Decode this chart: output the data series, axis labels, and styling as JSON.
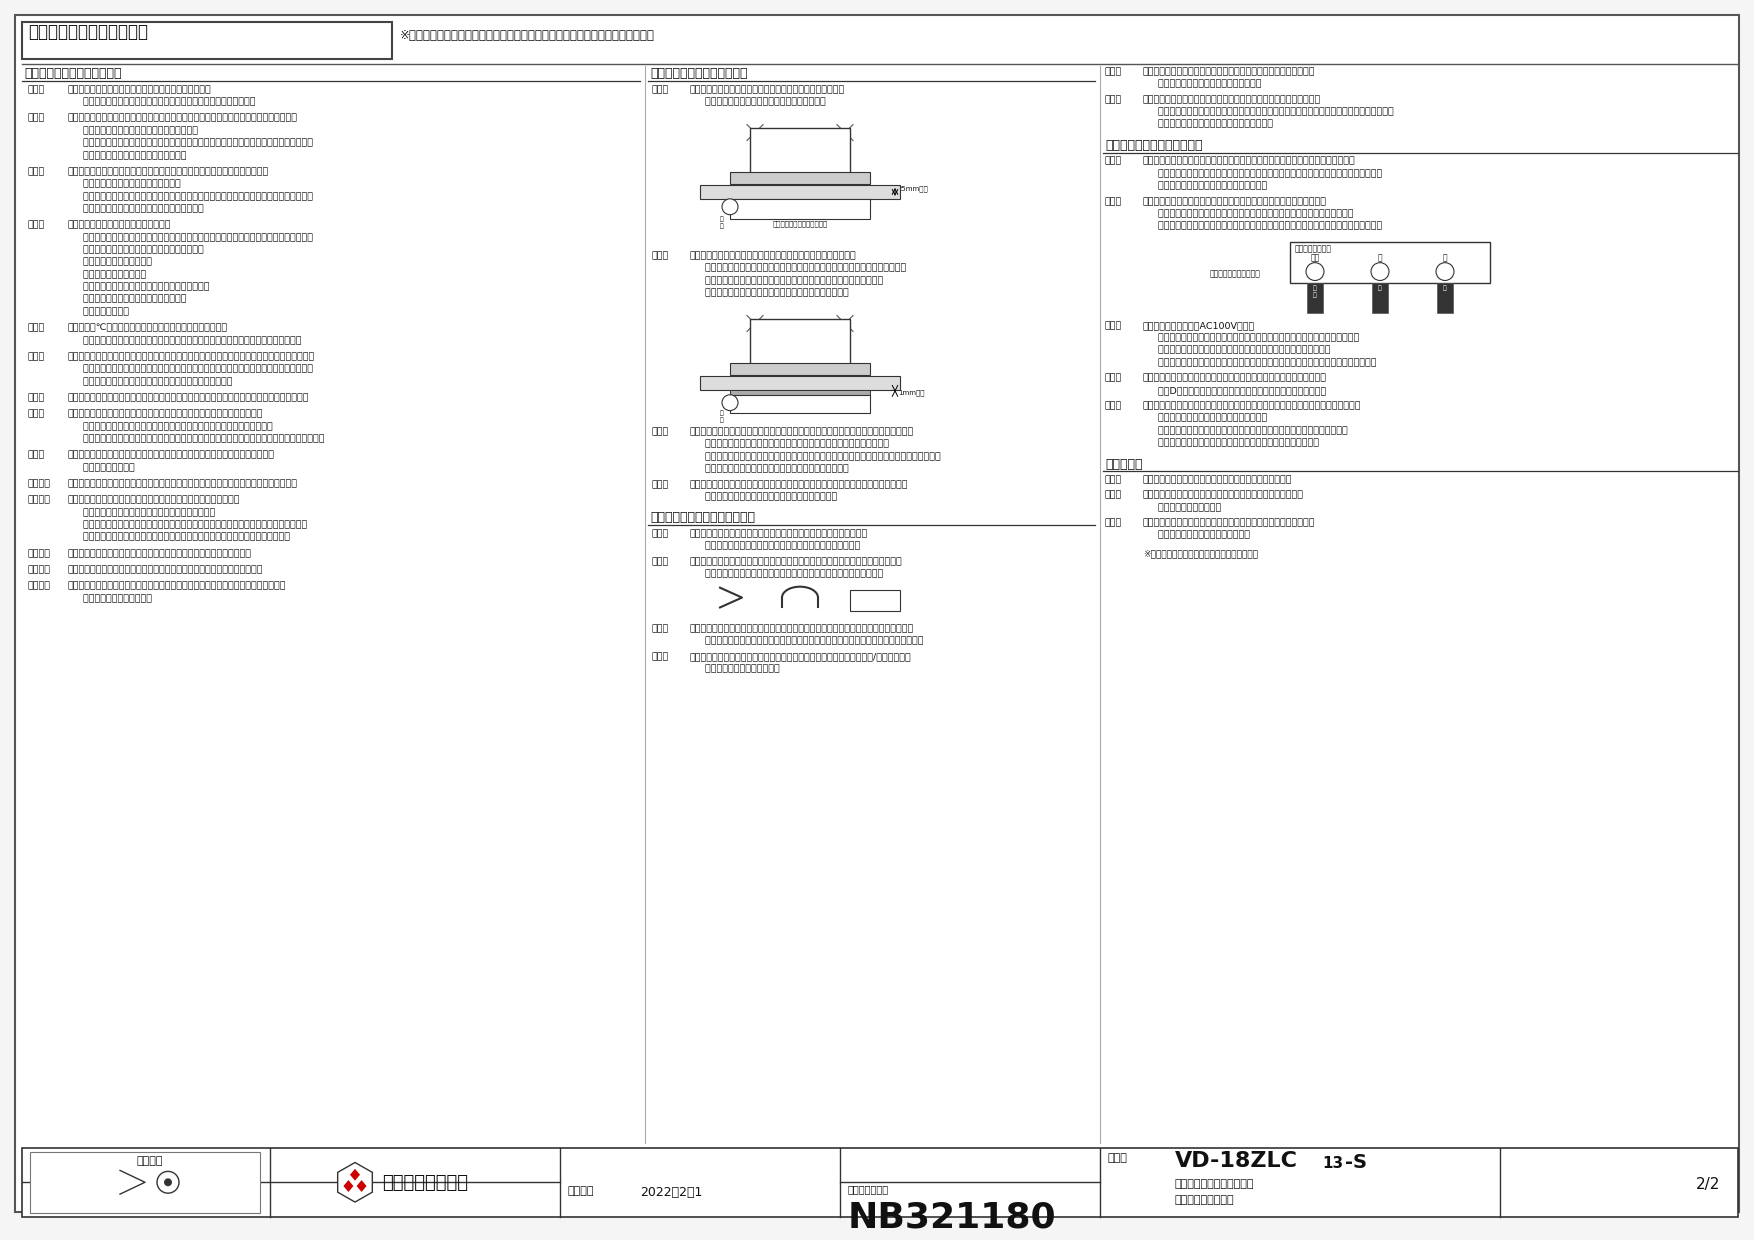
{
  "bg_color": "#f5f5f5",
  "page_bg": "#ffffff",
  "title_text": "設計・据付に関するご注意",
  "title_sub": "※据付け及び電気工事は安全上必ず製品に同梱の据付説明書に従ってください。",
  "section1_title": "１．据付場所に関するご注意",
  "section2_title": "２．据付方法に関するご注意",
  "section3_title": "３．ダクト工事に関するご注意",
  "section4_title": "４．電気工事に関するご注意",
  "section5_title": "５．その他",
  "footer_angle": "第三角法",
  "footer_company": "三菱電機株式会社",
  "footer_model_label": "形　名",
  "footer_model_main": "VD-18ZLC",
  "footer_model_sub": "13",
  "footer_model_end": "-S",
  "footer_desc1": "ダクト用換気扇　低騒音形",
  "footer_desc2": "２４時間換気機能付",
  "footer_date_label": "作成日付",
  "footer_date": "2022－2－1",
  "footer_number_label": "整　理　番　号",
  "footer_number": "NB321180",
  "footer_page": "2/2",
  "col1_items": [
    [
      "（１）",
      "内釜式風呂を据付けた浴室には据付けないでください。\n     排気ガスが逆流し、一酸化炭素中毒を引き起こす原因となります。"
    ],
    [
      "（２）",
      "この製品は、浴室・トイレ・洗面所・居間・事務所・店舗の天井面に据付けてください。\n     それ以外の用途には使用しないでください。\n     早期故障（部品の破損、モーターの故障（動作停止・異常音））や火災、漏電（感電）、\n     部品破損による落下の原因となります。"
    ],
    [
      "（３）",
      "台所・厨房・飲食店など、熱気や油煙が発生する場所でご使用になる場合は、\n     オール金属タイプをお選びください。\n     早期故障（部品の破損、モーターの故障（動作停止・異常音））や火災、漏電（感電）、\n     腐食（グリルなどの落下）の原因となります。"
    ],
    [
      "（４）",
      "以下の場所では使用しないでください。\n     早期故障（部品の破損、モーターの故障（動作停止・異常音））や火災、漏電（感電）、\n     腐食（グリルなどの落下）の原因となります。\n     ・有機溶剤を使用する場所\n     ・可燃性ガスがある場所\n     ・温泉や硫黄・塩素などの腐食性成分を含む場所\n     ・殺菌剤・消毒剤を頻繁に使用する場所\n     ・海岸に近い場所"
    ],
    [
      "（５）",
      "高温（４０℃以上）になる場所には据付けないでください。\n     早期故障（部品の変形、モーターの故障（動作停止・異常音））の原因となります。"
    ],
    [
      "（６）",
      "プラスチックボディタイプのダクト用換気扇およびダクト用システム部材のご使用については、\n     地域により防災上の制限（内装材の制限、可燃物との距離の制限など）がありますので、\n     詳細は行政官庁または、消防署にお問い合わせください。"
    ],
    [
      "（７）",
      "傾斜天井には据付けないでください。シャッター開閉不良、振動、異常音の原因となります。"
    ],
    [
      "（８）",
      "天吊金具をご使用になる場合、製品の着脱には天井裏での作業が必要です。\n     天井裏での作業ができるように、製品の近くに点検口を設けてください。\n     点検口がない場合の製品取替えなどで、天井などを壊す費用は、お客様のご負担となります。"
    ],
    [
      "（９）",
      "浴室など湿気の多い場所では、グリルから水滴が落ちても不快にならない場所に\n     据付けてください。"
    ],
    [
      "（１０）",
      "業務用２４時間風呂のような常時湿気のある場所では、寿命が短くなる場合があります。"
    ],
    [
      "（１１）",
      "風圧式シャッターでは、急激なドアの開閉や外風の強い時などに、\n     シャッターの閉じる音が聞こえる場合があります。\n     常時外風が強い場所に据付ける場合は、電気式シャッター付タイプを選定いただくか、\n     ダクト用システム部材の中間取付形電動シャッターとの併用をおすすめします。"
    ],
    [
      "（１２）",
      "天井材は、振動・共鳴音防止のため薄度のあるものをご使用ください。"
    ],
    [
      "（１３）",
      "製品上部を断熱材などで覆わないでください。早期故障の原因となります。"
    ],
    [
      "（１４）",
      "グリルを取りはずしやすくするため、グリル側面と部屋の壁面を１５０㎜以上離し、\n     製品を据付けてください。"
    ]
  ],
  "col2_s2_items": [
    [
      "（１）",
      "本体据付面とグリル面の寸法は２５㎜以下としてください。\n     グリルが天井材に密着しない場合があります。"
    ],
    [
      "（２）",
      "天井面と本体フランジとの間にパッキンをご使用になる場合は、\n     薄いもの・軟らかいものを使用し、据付後すき間がないようにしてください。\n     補強板を入れる場合には、厚さが１㎜以下のものをご使用ください。\n     天井面とグリルの間にすき間が生じる原因となります。"
    ],
    [
      "（３）",
      "野縁を組立てる際は、あらかじめ据付説明書の野縁指定寸法（野縁高さ、埋込寸法）を\n     ご確認の上、本体固定ねじを垂直に締付けられる寸法にしてください。\n     また、本体重量により天井がたわまないように、十分強度のある野縁に据付けてください。\n     天井面とグリルの間にすき間が生じる原因となります。"
    ],
    [
      "（４）",
      "天吊金具をご使用になる場合、天吊金具は正しい位置、据付本数でご使用ください。\n     落下、振動、異常音、動作異常の原因となります。"
    ]
  ],
  "col2_s3_items": [
    [
      "（１）",
      "ダクト接続口に力が加わらないよう、ダクトは必ず吊ってください。\n     シャッター開閉不良、本体からの風漏れの原因となります。"
    ],
    [
      "（２）",
      "次のようなダクト工事はしないでください。風量低下や異常音の原因となります。\n     ・極端な曲げ　・多数の曲げ　・ダクト接続口のそこもの　・しぼり"
    ],
    [
      "（３）",
      "据付け前には、必ず排気ダクト、ダクト用システム部材に異常（排気ダクトのつぶれ、\n     ほこり詰まりなど）がないかご確認ください。風量低下や異常音の原因となります。"
    ],
    [
      "（４）",
      "排気ダクトは雨水の浸入やドレン水の逆流を防ぐため、屋外に向けて１/１００以上の\n     下り勾配をつけてください。"
    ]
  ],
  "col3_s2_extra": [
    [
      "（５）",
      "外風の影響を強く受ける場所には排気口を据付けないでください。\n     換気風量が不足するおそれがあります。"
    ],
    [
      "（６）",
      "排気ダクトの先端には、鳥などの侵入を防ぐためのベントキャップ、\n     または雨水などの浸入を防ぐための深形フード、外風が強いところでは耐外風フードなどの\n     ダクト用システム部材を取付けてください。"
    ]
  ],
  "col3_s4_items": [
    [
      "（１）",
      "電子式スイッチ（半導体制御による速調・温度・湿度・タイマースイッチなど）や\n     ホタルスイッチをご使用の場合は組合せ上、不具合が発生するおそれがありますので、\n     ご使用の際はあらかじめご確認ください。"
    ],
    [
      "（２）",
      "製品側・スイッチ側への電気結線を間違えるとモーターが故障します。\n     特に、「共通」への結線を間違えると、モーターのヒューズが溶断します。\n     正しく結線するために、電気工事の際、各電源電線を識別できるようにしてください。"
    ],
    [
      "（３）",
      "この製品の定格電圧はAC100Vです。\n     異電圧印加（２００Ｖ印加など）を含む誤結線によるモーターの故障の場合、\n     サービス費用（交換部品代含む）は当社の負担となりませんので、\n     電源電圧よく確認（製品銘板、スイッチ側）をいつご確認の上、結線してください。"
    ],
    [
      "（４）",
      "浴室など湿気の多い場所でご使用になる場合は、アース端子を使用して\n     必ずD種接地工事を行い、漏電ブレーカーを取付けてください。"
    ],
    [
      "（５）",
      "同一棟軸の換気扇は互いに干渉することがあります。１台の換気扇が故障し上場合、\n     他の換気扇も正常に動作しなくなります。\n     対策品（リレー追加）につきましては、当社までお問い合わせください。\n     なお、強制切替を行わない結線では、複数台運転も可能です。"
    ]
  ],
  "col3_s5_items": [
    [
      "（１）",
      "効果的な換気を行うために給気口を必ず設けてください。"
    ],
    [
      "（２）",
      "長年ご使用いただくために換気扇のメンテナンスが必要です。\n     モーターは消耗品です。"
    ],
    [
      "（３）",
      "グリルをグリルの面積が広い出し帯域を積極的に守ってください。\n     グリルが変形する原因となります。"
    ]
  ]
}
